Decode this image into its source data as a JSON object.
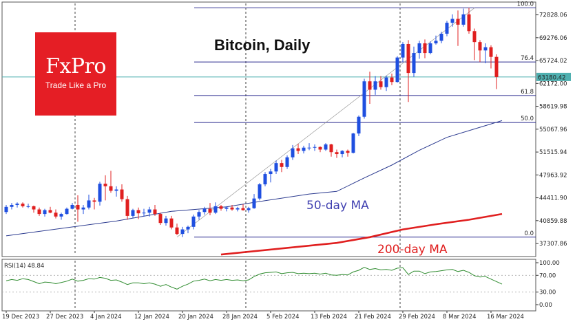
{
  "chart_data": {
    "type": "candlestick",
    "title": "Bitcoin, Daily",
    "brand": {
      "name": "FxPro",
      "tagline": "Trade Like a Pro",
      "color": "#e51e25"
    },
    "colors": {
      "up": "#1f4fe0",
      "down": "#e01f1f",
      "ma50": "#2b3a8f",
      "ma200": "#e01f1f",
      "rsi": "#2e8b2e",
      "last_price": "#4fb0b0",
      "fib": "#2b2b8f"
    },
    "x_labels": [
      "19 Dec 2023",
      "27 Dec 2023",
      "4 Jan 2024",
      "12 Jan 2024",
      "20 Jan 2024",
      "28 Jan 2024",
      "5 Feb 2024",
      "13 Feb 2024",
      "21 Feb 2024",
      "29 Feb 2024",
      "8 Mar 2024",
      "16 Mar 2024"
    ],
    "price_axis": [
      72828.06,
      69276.06,
      65724.02,
      62172.0,
      58619.98,
      55067.96,
      51515.94,
      47963.92,
      44411.9,
      40859.88,
      37307.86
    ],
    "ylim": [
      35500,
      74600
    ],
    "last_price_label": "63180.42",
    "last_price": 63180.42,
    "fibonacci": {
      "low": 38300,
      "high": 73900,
      "levels": [
        {
          "label": "100.0",
          "value": 73900
        },
        {
          "label": "76.4",
          "value": 65500
        },
        {
          "label": "61.8",
          "value": 60300
        },
        {
          "label": "50.0",
          "value": 56100
        },
        {
          "label": "0.0",
          "value": 38300
        }
      ]
    },
    "annotations": {
      "ma50": "50-day MA",
      "ma200": "200-day MA"
    },
    "candles": [
      [
        42200,
        43300,
        41900,
        43000
      ],
      [
        43000,
        43600,
        42600,
        43300
      ],
      [
        43300,
        43700,
        42900,
        43500
      ],
      [
        43500,
        43700,
        42900,
        43100
      ],
      [
        43100,
        43500,
        42800,
        43100
      ],
      [
        43100,
        43200,
        42100,
        42600
      ],
      [
        42600,
        42900,
        41600,
        41900
      ],
      [
        41900,
        42700,
        41500,
        42500
      ],
      [
        42500,
        43000,
        42000,
        42100
      ],
      [
        42100,
        42600,
        41200,
        41500
      ],
      [
        41500,
        42100,
        41000,
        41900
      ],
      [
        41900,
        42900,
        41800,
        42700
      ],
      [
        42700,
        43600,
        42600,
        43300
      ],
      [
        43300,
        44800,
        40700,
        42600
      ],
      [
        42600,
        43300,
        41900,
        42900
      ],
      [
        42900,
        44900,
        42600,
        44000
      ],
      [
        44000,
        44400,
        42600,
        43800
      ],
      [
        43800,
        46900,
        43200,
        46600
      ],
      [
        46600,
        47900,
        44000,
        46200
      ],
      [
        46200,
        48600,
        45200,
        45500
      ],
      [
        45500,
        46200,
        44600,
        45700
      ],
      [
        45700,
        46500,
        43800,
        44200
      ],
      [
        44200,
        44700,
        41000,
        41600
      ],
      [
        41600,
        42700,
        41300,
        42500
      ],
      [
        42500,
        42900,
        41100,
        42000
      ],
      [
        42000,
        42700,
        41500,
        42100
      ],
      [
        42100,
        43000,
        41500,
        42600
      ],
      [
        42600,
        43300,
        41600,
        41900
      ],
      [
        41900,
        42100,
        40200,
        40500
      ],
      [
        40500,
        41600,
        40100,
        41200
      ],
      [
        41200,
        41600,
        39500,
        39800
      ],
      [
        39800,
        40400,
        38600,
        38800
      ],
      [
        38800,
        39900,
        38300,
        39500
      ],
      [
        39500,
        40100,
        38900,
        39900
      ],
      [
        39900,
        41800,
        39500,
        41500
      ],
      [
        41500,
        42500,
        41000,
        42200
      ],
      [
        42200,
        43000,
        41800,
        42700
      ],
      [
        42700,
        43600,
        41700,
        42100
      ],
      [
        42100,
        43700,
        41900,
        43100
      ],
      [
        43100,
        43300,
        42400,
        42700
      ],
      [
        42700,
        43100,
        42300,
        42900
      ],
      [
        42900,
        43300,
        42400,
        42600
      ],
      [
        42600,
        43000,
        42300,
        42800
      ],
      [
        42800,
        43400,
        42400,
        42500
      ],
      [
        42500,
        43000,
        42100,
        42800
      ],
      [
        42800,
        45000,
        42700,
        44300
      ],
      [
        44300,
        46700,
        44000,
        46500
      ],
      [
        46500,
        48400,
        46200,
        48100
      ],
      [
        48100,
        48900,
        46800,
        48500
      ],
      [
        48500,
        50200,
        48100,
        49800
      ],
      [
        49800,
        50300,
        48400,
        49200
      ],
      [
        49200,
        51000,
        48900,
        50700
      ],
      [
        50700,
        52600,
        50300,
        52100
      ],
      [
        52100,
        52800,
        51200,
        51700
      ],
      [
        51700,
        52500,
        51300,
        52200
      ],
      [
        52200,
        52900,
        51800,
        52200
      ],
      [
        52200,
        52700,
        51700,
        52300
      ],
      [
        52300,
        52400,
        51500,
        51900
      ],
      [
        51900,
        52900,
        51700,
        52700
      ],
      [
        52700,
        52800,
        50800,
        51500
      ],
      [
        51500,
        51900,
        50600,
        51200
      ],
      [
        51200,
        51800,
        50700,
        51700
      ],
      [
        51700,
        51900,
        50800,
        51400
      ],
      [
        51400,
        54500,
        51300,
        54400
      ],
      [
        54400,
        57200,
        54000,
        57000
      ],
      [
        57000,
        62900,
        56700,
        62500
      ],
      [
        62500,
        64000,
        59000,
        61200
      ],
      [
        61200,
        63300,
        60400,
        62500
      ],
      [
        62500,
        63300,
        61200,
        61600
      ],
      [
        61600,
        63400,
        61000,
        63100
      ],
      [
        63100,
        63700,
        61900,
        62400
      ],
      [
        62400,
        66400,
        62300,
        66200
      ],
      [
        66200,
        68600,
        65500,
        68300
      ],
      [
        68300,
        68900,
        59300,
        63800
      ],
      [
        63800,
        67900,
        63200,
        66900
      ],
      [
        66900,
        68800,
        66000,
        68400
      ],
      [
        68400,
        69000,
        66100,
        66900
      ],
      [
        66900,
        68700,
        66700,
        68400
      ],
      [
        68400,
        69600,
        68200,
        68800
      ],
      [
        68800,
        70200,
        68400,
        69900
      ],
      [
        69900,
        71900,
        69500,
        71600
      ],
      [
        71600,
        72900,
        71000,
        72200
      ],
      [
        72200,
        73500,
        68000,
        71300
      ],
      [
        71300,
        73800,
        71000,
        72900
      ],
      [
        72900,
        73900,
        69900,
        70300
      ],
      [
        70300,
        70700,
        65800,
        68600
      ],
      [
        68600,
        68900,
        65500,
        67300
      ],
      [
        67300,
        68400,
        65300,
        67800
      ],
      [
        67800,
        68100,
        64500,
        66300
      ],
      [
        66300,
        66700,
        61300,
        63180
      ]
    ],
    "ma50": [
      [
        0,
        38500
      ],
      [
        20,
        40800
      ],
      [
        30,
        42300
      ],
      [
        40,
        43000
      ],
      [
        45,
        43700
      ],
      [
        55,
        45000
      ],
      [
        60,
        45400
      ],
      [
        65,
        47500
      ],
      [
        70,
        49500
      ],
      [
        75,
        51800
      ],
      [
        80,
        53800
      ],
      [
        85,
        55100
      ],
      [
        90,
        56400
      ]
    ],
    "ma200": [
      [
        39,
        35600
      ],
      [
        60,
        37400
      ],
      [
        66,
        38300
      ],
      [
        72,
        39500
      ],
      [
        78,
        40300
      ],
      [
        84,
        41000
      ],
      [
        90,
        41900
      ]
    ],
    "rsi": {
      "label": "RSI(14) 48.84",
      "ticks": [
        100.0,
        70.0,
        30.0,
        0.0
      ],
      "tick_labels": [
        "100.00",
        "70.00",
        "30.00",
        "0.00"
      ],
      "values": [
        57,
        60,
        58,
        62,
        60,
        55,
        50,
        54,
        53,
        50,
        53,
        56,
        61,
        56,
        58,
        62,
        61,
        65,
        63,
        58,
        59,
        54,
        48,
        52,
        52,
        50,
        52,
        49,
        44,
        48,
        42,
        37,
        44,
        49,
        56,
        58,
        61,
        57,
        60,
        58,
        60,
        58,
        59,
        57,
        59,
        67,
        73,
        76,
        77,
        78,
        74,
        76,
        77,
        74,
        75,
        74,
        75,
        73,
        75,
        71,
        70,
        72,
        71,
        78,
        82,
        89,
        84,
        86,
        83,
        84,
        82,
        87,
        88,
        72,
        80,
        80,
        74,
        78,
        79,
        81,
        83,
        84,
        79,
        82,
        77,
        69,
        66,
        67,
        61,
        55,
        49
      ]
    }
  }
}
